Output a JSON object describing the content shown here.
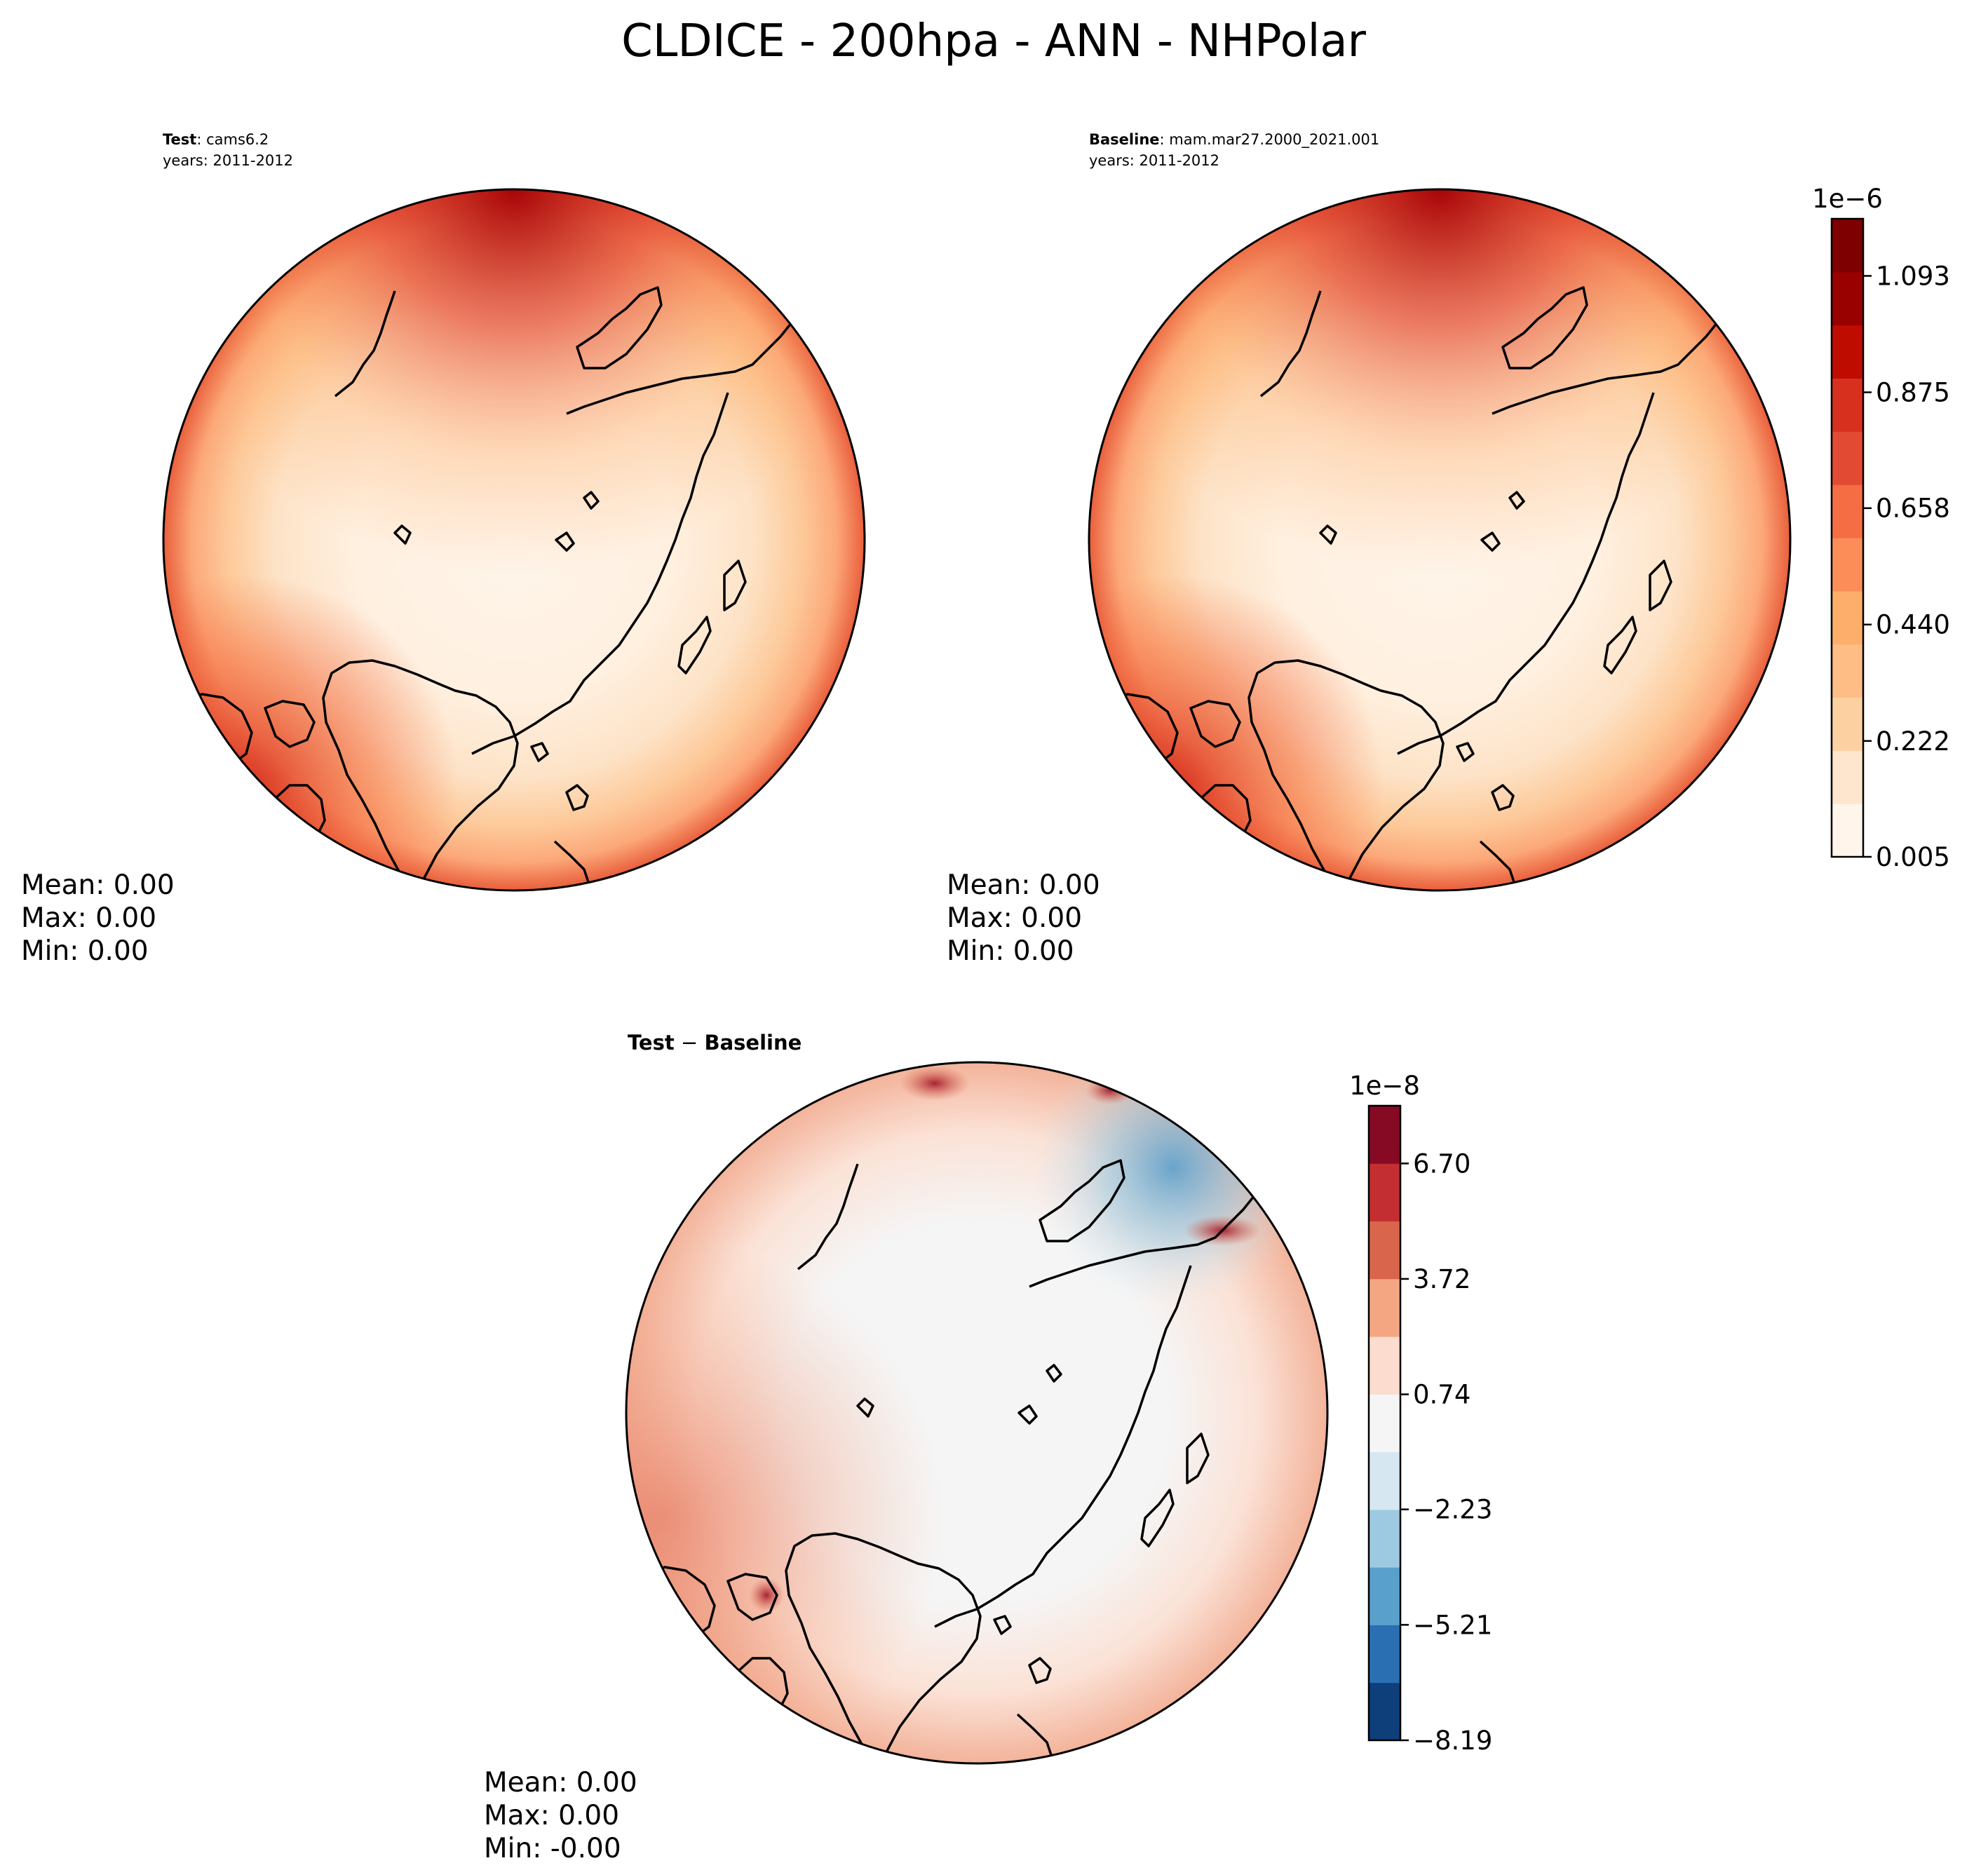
{
  "title": "CLDICE - 200hpa - ANN - NHPolar",
  "chart_data": [
    {
      "type": "heatmap",
      "projection": "north-polar-stereographic",
      "name_bold": "Test",
      "name_rest": ": cams6.2",
      "years": "years: 2011-2012",
      "stats": {
        "mean": "Mean:  0.00",
        "max": "Max:  0.00",
        "min": "Min:  0.00"
      },
      "field": "ice cloud, high at lower latitudes (rim), lowest over the Arctic"
    },
    {
      "type": "heatmap",
      "projection": "north-polar-stereographic",
      "name_bold": "Baseline",
      "name_rest": ": mam.mar27.2000_2021.001",
      "years": "years: 2011-2012",
      "stats": {
        "mean": "Mean:  0.00",
        "max": "Max:  0.00",
        "min": "Min:  0.00"
      },
      "colorbar": {
        "exponent_label": "1e−6",
        "range": [
          0.005,
          1.2
        ],
        "tick_values": [
          0.005,
          0.222,
          0.44,
          0.658,
          0.875,
          1.093
        ],
        "tick_labels": [
          "0.005",
          "0.222",
          "0.440",
          "0.658",
          "0.875",
          "1.093"
        ],
        "colors": [
          "#fff5eb",
          "#fee6ce",
          "#fdd0a2",
          "#fdbd84",
          "#fdae6b",
          "#fc8d59",
          "#f46d43",
          "#e34a33",
          "#d7301f",
          "#bf0c00",
          "#990000",
          "#7f0000"
        ]
      }
    },
    {
      "type": "heatmap",
      "projection": "north-polar-stereographic",
      "name_bold": "Test",
      "name_sep": " − ",
      "name_bold2": "Baseline",
      "stats": {
        "mean": "Mean:  0.00",
        "max": "Max:  0.00",
        "min": "Min: -0.00"
      },
      "colorbar": {
        "exponent_label": "1e−8",
        "range": [
          -8.19,
          8.19
        ],
        "tick_values": [
          -8.19,
          -5.21,
          -2.23,
          0.74,
          3.72,
          6.7
        ],
        "tick_labels": [
          "−8.19",
          "−5.21",
          "−2.23",
          "0.74",
          "3.72",
          "6.70"
        ],
        "colors": [
          "#0e3f7a",
          "#2a6fb2",
          "#5aa0cd",
          "#9ecae1",
          "#d6e7f2",
          "#f5f5f5",
          "#fbdccf",
          "#f4a683",
          "#d9654d",
          "#c22e32",
          "#870a24"
        ]
      }
    }
  ]
}
